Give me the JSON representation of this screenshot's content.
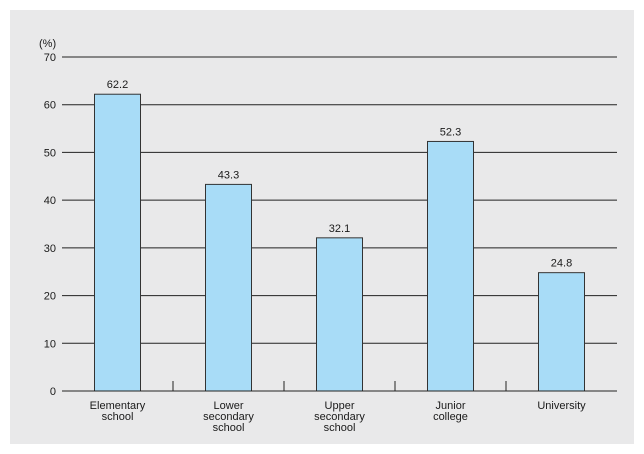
{
  "chart_data": {
    "type": "bar",
    "unit_label": "(%)",
    "categories": [
      [
        "Elementary",
        "school"
      ],
      [
        "Lower",
        "secondary",
        "school"
      ],
      [
        "Upper",
        "secondary",
        "school"
      ],
      [
        "Junior",
        "college"
      ],
      [
        "University"
      ]
    ],
    "values": [
      62.2,
      43.3,
      32.1,
      52.3,
      24.8
    ],
    "value_labels": [
      "62.2",
      "43.3",
      "32.1",
      "52.3",
      "24.8"
    ],
    "yticks": [
      "0",
      "10",
      "20",
      "30",
      "40",
      "50",
      "60",
      "70"
    ],
    "ylim": [
      0,
      70
    ],
    "grid": true,
    "colors": {
      "bar_fill": "#a8dcf7",
      "bar_stroke": "#333333",
      "grid": "#222222",
      "panel": "#e9e9ea"
    }
  }
}
